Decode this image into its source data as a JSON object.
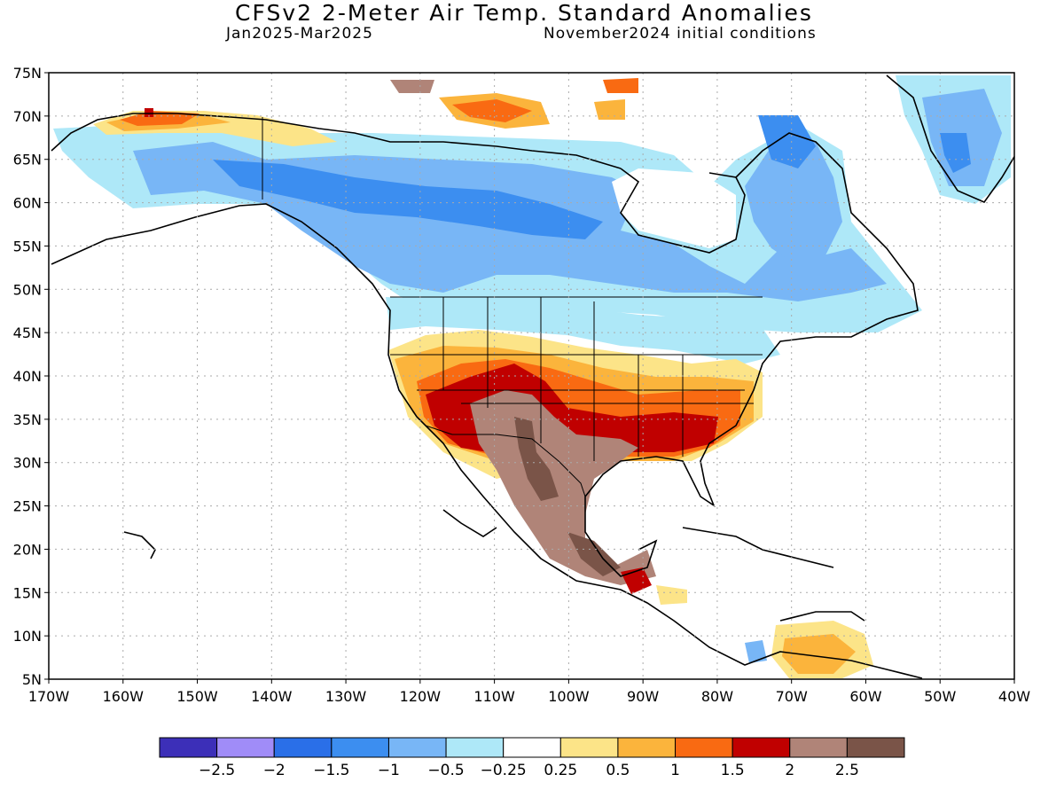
{
  "title": "CFSv2 2-Meter Air Temp. Standard Anomalies",
  "subtitle_left": "Jan2025-Mar2025",
  "subtitle_right": "November2024 initial conditions",
  "map": {
    "lon_range": [
      -170,
      -40
    ],
    "lat_range": [
      5,
      75
    ],
    "grid": true,
    "y_ticks": [
      "75N",
      "70N",
      "65N",
      "60N",
      "55N",
      "50N",
      "45N",
      "40N",
      "35N",
      "30N",
      "25N",
      "20N",
      "15N",
      "10N",
      "5N"
    ],
    "x_ticks": [
      "170W",
      "160W",
      "150W",
      "140W",
      "130W",
      "120W",
      "110W",
      "100W",
      "90W",
      "80W",
      "70W",
      "60W",
      "50W",
      "40W"
    ]
  },
  "colorbar": {
    "colors": [
      "#3c2fb8",
      "#a08cf8",
      "#2a6fe8",
      "#3c8ef0",
      "#78b6f6",
      "#aee8f8",
      "#ffffff",
      "#fce488",
      "#fbb43c",
      "#f96a12",
      "#c00000",
      "#b08478",
      "#7a5448"
    ],
    "labels": [
      "-2.5",
      "-2",
      "-1.5",
      "-1",
      "-0.5",
      "-0.25",
      "0.25",
      "0.5",
      "1",
      "1.5",
      "2",
      "2.5"
    ]
  }
}
